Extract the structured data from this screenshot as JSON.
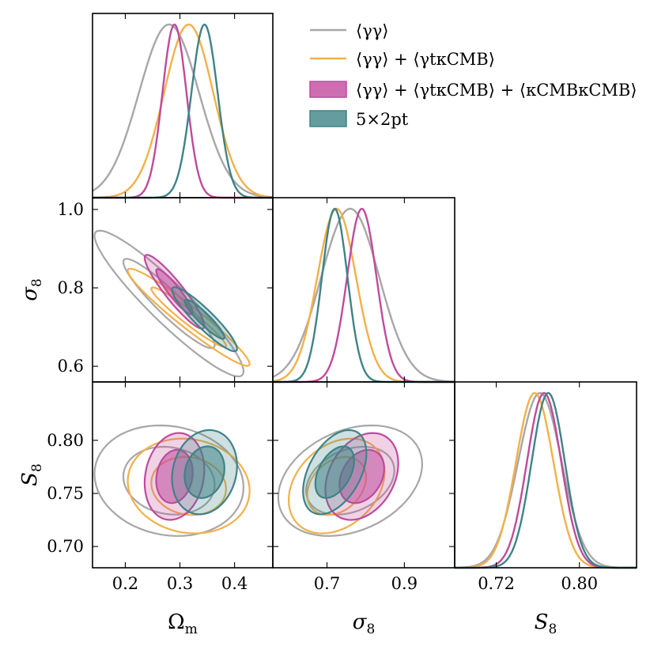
{
  "chart_data": {
    "type": "corner",
    "parameters": [
      {
        "key": "om",
        "label": "Ωm",
        "label_main": "Ω",
        "label_sub": "m",
        "range": [
          0.14,
          0.47
        ],
        "ticks": [
          "0.2",
          "0.3",
          "0.4"
        ],
        "tick_values": [
          0.2,
          0.3,
          0.4
        ]
      },
      {
        "key": "s8",
        "label": "σ8",
        "label_main": "σ",
        "label_sub": "8",
        "range": [
          0.56,
          1.03
        ],
        "ticks": [
          "0.6",
          "0.8",
          "1.0"
        ],
        "tick_values": [
          0.6,
          0.8,
          1.0
        ],
        "x_ticks": [
          "0.7",
          "0.9"
        ],
        "x_tick_values": [
          0.7,
          0.9
        ],
        "x_range": [
          0.56,
          1.03
        ]
      },
      {
        "key": "S8",
        "label": "S8",
        "label_main": "S",
        "label_sub": "8",
        "range": [
          0.68,
          0.855
        ],
        "ticks": [
          "0.70",
          "0.75",
          "0.80"
        ],
        "tick_values": [
          0.7,
          0.75,
          0.8
        ],
        "x_ticks": [
          "0.72",
          "0.80"
        ],
        "x_tick_values": [
          0.72,
          0.8
        ],
        "x_range": [
          0.68,
          0.855
        ]
      }
    ],
    "series": [
      {
        "name": "⟨γγ⟩",
        "color": "#a7a7a7",
        "filled": false,
        "om": [
          0.28,
          0.055
        ],
        "s8": [
          0.76,
          0.075
        ],
        "S8": [
          0.762,
          0.021
        ],
        "corr_om_s8": -0.93,
        "corr_om_S8": -0.12,
        "corr_s8_S8": 0.3
      },
      {
        "name": "⟨γγ⟩ + ⟨γtκCMB⟩",
        "color": "#f3b04a",
        "filled": false,
        "om": [
          0.316,
          0.045
        ],
        "s8": [
          0.725,
          0.05
        ],
        "S8": [
          0.757,
          0.018
        ],
        "corr_om_s8": -0.96,
        "corr_om_S8": -0.1,
        "corr_s8_S8": 0.3
      },
      {
        "name": "⟨γγ⟩ + ⟨γtκCMB⟩ + ⟨κCMBκCMB⟩",
        "color": "#c04a9d",
        "filled": true,
        "om": [
          0.29,
          0.022
        ],
        "s8": [
          0.79,
          0.038
        ],
        "S8": [
          0.766,
          0.0165
        ],
        "corr_om_s8": -0.92,
        "corr_om_S8": 0.15,
        "corr_s8_S8": 0.3
      },
      {
        "name": "5×2pt",
        "color": "#3f8386",
        "filled": true,
        "om": [
          0.345,
          0.024
        ],
        "s8": [
          0.72,
          0.033
        ],
        "S8": [
          0.77,
          0.016
        ],
        "corr_om_s8": -0.92,
        "corr_om_S8": 0.15,
        "corr_s8_S8": 0.45
      }
    ],
    "legend": {
      "placement": "top-right"
    }
  }
}
